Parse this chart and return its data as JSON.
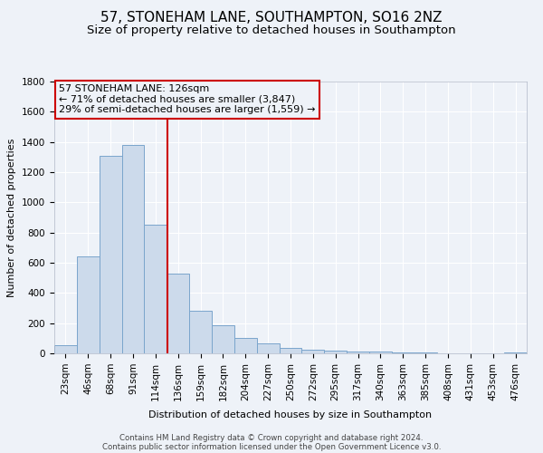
{
  "title": "57, STONEHAM LANE, SOUTHAMPTON, SO16 2NZ",
  "subtitle": "Size of property relative to detached houses in Southampton",
  "xlabel": "Distribution of detached houses by size in Southampton",
  "ylabel": "Number of detached properties",
  "bar_labels": [
    "23sqm",
    "46sqm",
    "68sqm",
    "91sqm",
    "114sqm",
    "136sqm",
    "159sqm",
    "182sqm",
    "204sqm",
    "227sqm",
    "250sqm",
    "272sqm",
    "295sqm",
    "317sqm",
    "340sqm",
    "363sqm",
    "385sqm",
    "408sqm",
    "431sqm",
    "453sqm",
    "476sqm"
  ],
  "bar_values": [
    55,
    645,
    1310,
    1380,
    855,
    530,
    280,
    185,
    105,
    65,
    35,
    25,
    20,
    15,
    10,
    5,
    5,
    3,
    2,
    1,
    5
  ],
  "bar_color": "#ccdaeb",
  "bar_edge_color": "#7aa5cc",
  "vline_x": 4.52,
  "vline_color": "#cc0000",
  "annotation_title": "57 STONEHAM LANE: 126sqm",
  "annotation_line1": "← 71% of detached houses are smaller (3,847)",
  "annotation_line2": "29% of semi-detached houses are larger (1,559) →",
  "annotation_box_color": "#cc0000",
  "ylim": [
    0,
    1800
  ],
  "yticks": [
    0,
    200,
    400,
    600,
    800,
    1000,
    1200,
    1400,
    1600,
    1800
  ],
  "footnote1": "Contains HM Land Registry data © Crown copyright and database right 2024.",
  "footnote2": "Contains public sector information licensed under the Open Government Licence v3.0.",
  "background_color": "#eef2f8",
  "grid_color": "#ffffff",
  "title_fontsize": 11,
  "subtitle_fontsize": 9.5,
  "annotation_fontsize": 8,
  "axis_fontsize": 7.5,
  "label_fontsize": 8
}
